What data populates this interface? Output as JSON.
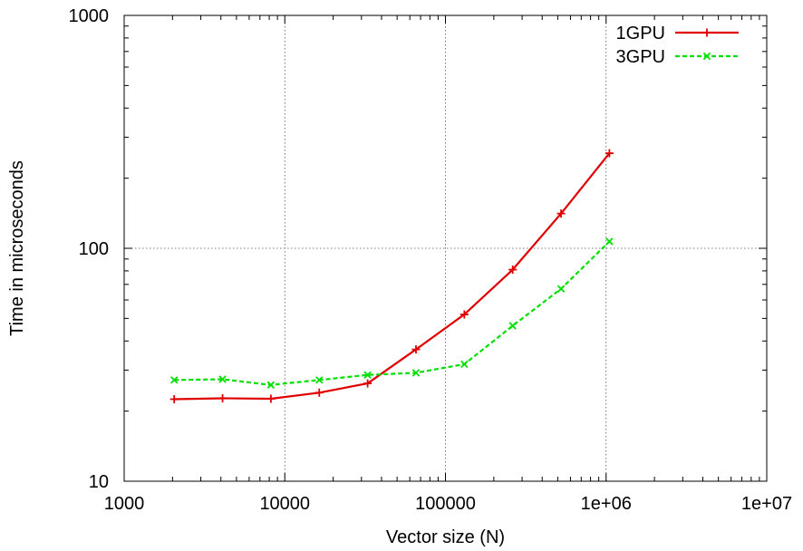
{
  "chart_data": {
    "type": "line",
    "title": "",
    "xlabel": "Vector size (N)",
    "ylabel": "Time in microseconds",
    "x_scale": "log",
    "y_scale": "log",
    "xlim": [
      1000,
      10000000
    ],
    "ylim": [
      10,
      1000
    ],
    "x_ticks": [
      {
        "value": 1000,
        "label": "1000"
      },
      {
        "value": 10000,
        "label": "10000"
      },
      {
        "value": 100000,
        "label": "100000"
      },
      {
        "value": 1000000,
        "label": "1e+06"
      },
      {
        "value": 10000000,
        "label": "1e+07"
      }
    ],
    "y_ticks": [
      {
        "value": 10,
        "label": "10"
      },
      {
        "value": 100,
        "label": "100"
      },
      {
        "value": 1000,
        "label": "1000"
      }
    ],
    "grid": true,
    "legend_position": "top-right",
    "series": [
      {
        "name": "1GPU",
        "color": "#e00000",
        "dash": "solid",
        "marker": "plus",
        "x": [
          2048,
          4096,
          8192,
          16384,
          32768,
          65536,
          131072,
          262144,
          524288,
          1048576
        ],
        "y": [
          22.5,
          22.7,
          22.6,
          24.0,
          26.3,
          36.8,
          52.0,
          81.0,
          141.0,
          256.0
        ]
      },
      {
        "name": "3GPU",
        "color": "#00e000",
        "dash": "dashed",
        "marker": "cross",
        "x": [
          2048,
          4096,
          8192,
          16384,
          32768,
          65536,
          131072,
          262144,
          524288,
          1048576
        ],
        "y": [
          27.2,
          27.4,
          25.9,
          27.2,
          28.6,
          29.2,
          31.8,
          46.5,
          67.0,
          107.0
        ]
      }
    ]
  }
}
